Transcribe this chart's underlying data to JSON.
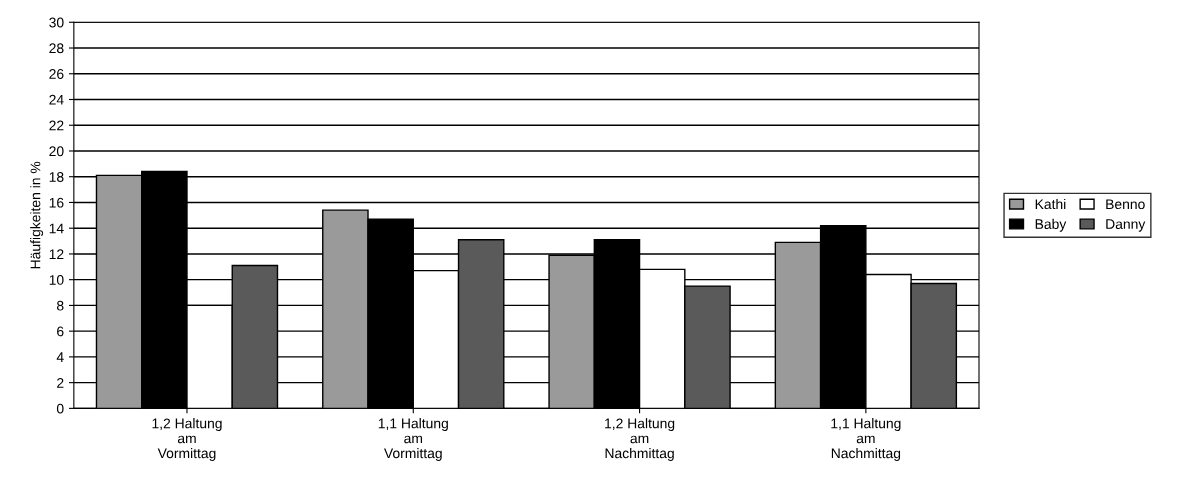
{
  "chart_data": {
    "type": "bar",
    "ylabel": "Häufigkeiten in %",
    "categories": [
      "1,2 Haltung\nam\nVormittag",
      "1,1 Haltung\nam\nVormittag",
      "1,2 Haltung\nam\nNachmittag",
      "1,1 Haltung\nam\nNachmittag"
    ],
    "series": [
      {
        "name": "Kathi",
        "color": "#9a9a9a",
        "values": [
          18.1,
          15.4,
          11.9,
          12.9
        ]
      },
      {
        "name": "Baby",
        "color": "#000000",
        "values": [
          18.4,
          14.7,
          13.1,
          14.2
        ]
      },
      {
        "name": "Benno",
        "color": "#ffffff",
        "values": [
          8.0,
          10.7,
          10.8,
          10.4
        ]
      },
      {
        "name": "Danny",
        "color": "#5a5a5a",
        "values": [
          11.1,
          13.1,
          9.5,
          9.7
        ]
      }
    ],
    "ylim": [
      0,
      30
    ],
    "yticks": [
      0,
      2,
      4,
      6,
      8,
      10,
      12,
      14,
      16,
      18,
      20,
      22,
      24,
      26,
      28,
      30
    ],
    "grid": "y",
    "legend": "right"
  }
}
